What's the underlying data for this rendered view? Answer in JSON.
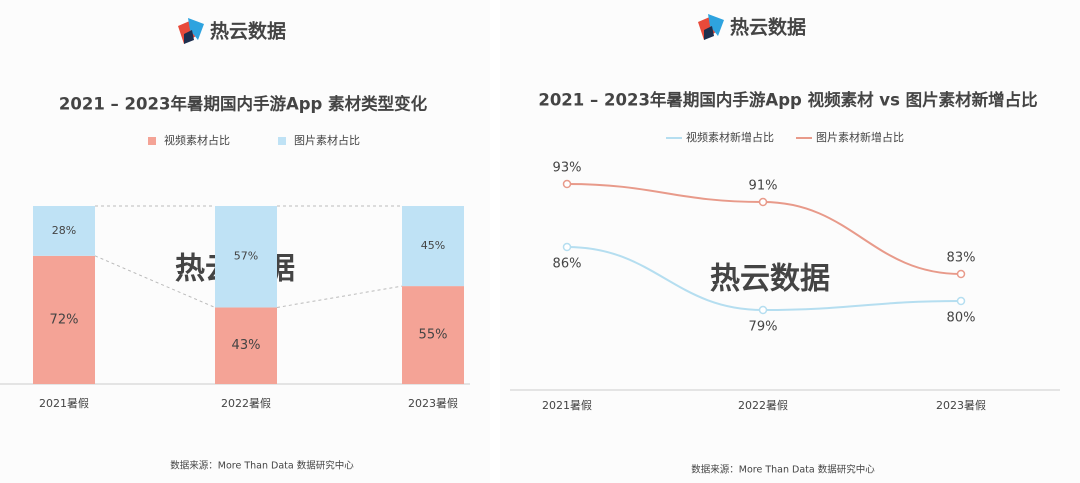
{
  "chart_data": [
    {
      "type": "bar",
      "stacked": true,
      "brand": "热云数据",
      "title": "2021 – 2023年暑期国内手游App 素材类型变化",
      "watermark": "热云数据",
      "categories": [
        "2021暑假",
        "2022暑假",
        "2023暑假"
      ],
      "series": [
        {
          "name": "视频素材占比",
          "color": "#f4a396",
          "values": [
            72,
            43,
            55
          ],
          "value_labels": [
            "72%",
            "43%",
            "55%"
          ]
        },
        {
          "name": "图片素材占比",
          "color": "#bfe2f5",
          "values": [
            28,
            57,
            45
          ],
          "value_labels": [
            "28%",
            "57%",
            "45%"
          ]
        }
      ],
      "source": "数据来源：More Than Data 数据研究中心"
    },
    {
      "type": "line",
      "brand": "热云数据",
      "title": "2021 – 2023年暑期国内手游App 视频素材 vs 图片素材新增占比",
      "watermark": "热云数据",
      "categories": [
        "2021暑假",
        "2022暑假",
        "2023暑假"
      ],
      "series": [
        {
          "name": "视频素材新增占比",
          "color": "#b5def0",
          "values": [
            86,
            79,
            80
          ],
          "value_labels": [
            "86%",
            "79%",
            "80%"
          ]
        },
        {
          "name": "图片素材新增占比",
          "color": "#e89a8a",
          "values": [
            93,
            91,
            83
          ],
          "value_labels": [
            "93%",
            "91%",
            "83%"
          ]
        }
      ],
      "source": "数据来源：More Than Data 数据研究中心"
    }
  ]
}
